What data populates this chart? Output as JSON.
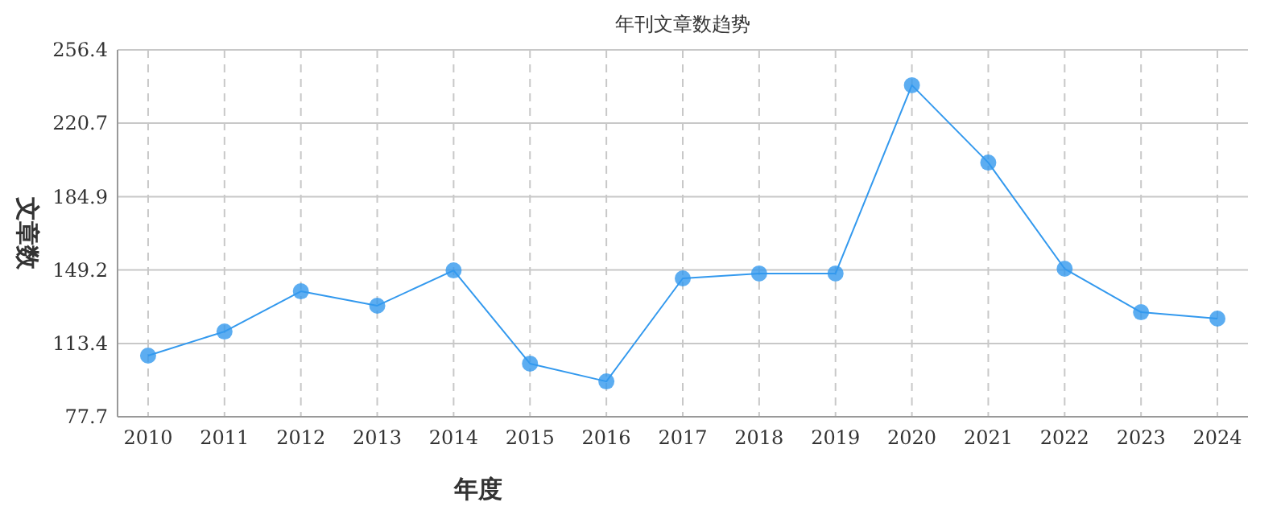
{
  "chart_data": {
    "type": "line",
    "title": "年刊文章数趋势",
    "xlabel": "年度",
    "ylabel": "文章数",
    "categories": [
      "2010",
      "2011",
      "2012",
      "2013",
      "2014",
      "2015",
      "2016",
      "2017",
      "2018",
      "2019",
      "2020",
      "2021",
      "2022",
      "2023",
      "2024"
    ],
    "series": [
      {
        "color": "#3399ee",
        "values": [
          107.5,
          119.2,
          138.8,
          131.8,
          149,
          103.6,
          94.9,
          145.1,
          147.5,
          147.5,
          239.2,
          201.5,
          149.8,
          128.6,
          125.5
        ]
      }
    ],
    "ylim": [
      77.7,
      256.4
    ],
    "yticks": [
      77.7,
      113.4,
      149.2,
      184.9,
      220.7,
      256.4
    ],
    "grid": true,
    "marker": "circle",
    "line_style": "solid"
  }
}
